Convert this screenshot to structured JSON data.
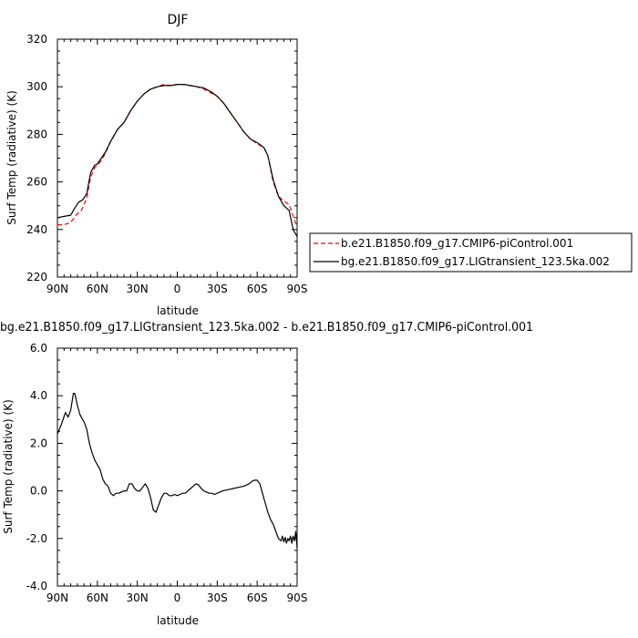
{
  "chart_data": [
    {
      "type": "line",
      "title": "DJF",
      "xlabel": "latitude",
      "ylabel": "Surf Temp (radiative) (K)",
      "xlim": [
        90,
        -90
      ],
      "ylim": [
        220,
        320
      ],
      "x_ticks": [
        90,
        60,
        30,
        0,
        -30,
        -60,
        -90
      ],
      "x_tick_labels": [
        "90N",
        "60N",
        "30N",
        "0",
        "30S",
        "60S",
        "90S"
      ],
      "y_ticks": [
        220,
        240,
        260,
        280,
        300,
        320
      ],
      "y_tick_labels": [
        "220",
        "240",
        "260",
        "280",
        "300",
        "320"
      ],
      "legend_position": "right",
      "series": [
        {
          "name": "b.e21.B1850.f09_g17.CMIP6-piControl.001",
          "color": "#ff0000",
          "dash": "dashed",
          "x": [
            90,
            85,
            80,
            76,
            72,
            68,
            65,
            62,
            60,
            57,
            54,
            50,
            45,
            40,
            35,
            30,
            25,
            20,
            15,
            10,
            5,
            0,
            -5,
            -10,
            -15,
            -20,
            -25,
            -30,
            -35,
            -40,
            -45,
            -50,
            -55,
            -60,
            -65,
            -68,
            -72,
            -76,
            -80,
            -84,
            -88,
            -90
          ],
          "y": [
            242,
            242,
            243,
            246,
            248,
            253,
            262,
            266,
            267,
            269,
            272,
            277,
            282,
            285,
            290,
            294,
            297,
            299,
            300,
            301,
            300.5,
            301,
            301,
            300.5,
            300,
            299,
            297.5,
            296,
            293,
            289,
            285,
            281,
            278,
            276,
            274.5,
            271,
            260,
            254,
            252,
            250.5,
            244,
            241
          ]
        },
        {
          "name": "bg.e21.B1850.f09_g17.LIGtransient_123.5ka.002",
          "color": "#000000",
          "dash": "solid",
          "x": [
            90,
            85,
            80,
            77,
            74,
            71,
            68,
            65,
            62,
            60,
            57,
            54,
            50,
            45,
            40,
            35,
            30,
            25,
            20,
            15,
            10,
            5,
            0,
            -5,
            -10,
            -15,
            -20,
            -25,
            -30,
            -35,
            -40,
            -45,
            -50,
            -55,
            -60,
            -65,
            -68,
            -72,
            -76,
            -80,
            -84,
            -87,
            -90
          ],
          "y": [
            245,
            245.5,
            246,
            249,
            251.5,
            252.5,
            255,
            264,
            267,
            267.5,
            270,
            272.5,
            277,
            282,
            285,
            290,
            294,
            297,
            299,
            300,
            300.5,
            300.5,
            301,
            301,
            300.5,
            300,
            299.5,
            298,
            296,
            293,
            289,
            285,
            281,
            278,
            276.5,
            274.5,
            271,
            261,
            254,
            250,
            248,
            240,
            237
          ]
        }
      ]
    },
    {
      "type": "line",
      "title": "bg.e21.B1850.f09_g17.LIGtransient_123.5ka.002 - b.e21.B1850.f09_g17.CMIP6-piControl.001",
      "xlabel": "latitude",
      "ylabel": "Surf Temp (radiative) (K)",
      "xlim": [
        90,
        -90
      ],
      "ylim": [
        -4,
        6
      ],
      "x_ticks": [
        90,
        60,
        30,
        0,
        -30,
        -60,
        -90
      ],
      "x_tick_labels": [
        "90N",
        "60N",
        "30N",
        "0",
        "30S",
        "60S",
        "90S"
      ],
      "y_ticks": [
        -4,
        -2,
        0,
        2,
        4,
        6
      ],
      "y_tick_labels": [
        "-4.0",
        "-2.0",
        "0.0",
        "2.0",
        "4.0",
        "6.0"
      ],
      "series": [
        {
          "color": "#000000",
          "dash": "solid",
          "x": [
            90,
            87,
            84,
            82,
            80,
            78,
            77,
            75,
            73,
            70,
            68,
            66,
            64,
            62,
            60,
            58,
            56,
            54,
            52,
            50,
            48,
            46,
            44,
            42,
            40,
            38,
            36,
            34,
            32,
            30,
            28,
            26,
            24,
            22,
            20,
            18,
            16,
            14,
            12,
            10,
            8,
            6,
            4,
            2,
            0,
            -2,
            -4,
            -6,
            -8,
            -10,
            -12,
            -14,
            -16,
            -18,
            -20,
            -22,
            -24,
            -26,
            -28,
            -30,
            -34,
            -38,
            -42,
            -46,
            -50,
            -54,
            -56,
            -58,
            -60,
            -62,
            -64,
            -66,
            -68,
            -70,
            -72,
            -74,
            -76,
            -78,
            -79,
            -80,
            -81,
            -82,
            -83,
            -84,
            -85,
            -86,
            -87,
            -88,
            -89,
            -90
          ],
          "y": [
            2.4,
            2.8,
            3.3,
            3.1,
            3.4,
            4.1,
            4.1,
            3.6,
            3.2,
            2.9,
            2.6,
            2.0,
            1.6,
            1.3,
            1.1,
            0.9,
            0.5,
            0.3,
            0.2,
            -0.1,
            -0.2,
            -0.1,
            -0.1,
            -0.05,
            0.0,
            0.0,
            0.3,
            0.3,
            0.1,
            0.0,
            0.0,
            0.15,
            0.3,
            0.1,
            -0.3,
            -0.8,
            -0.9,
            -0.6,
            -0.3,
            -0.1,
            -0.1,
            -0.2,
            -0.2,
            -0.15,
            -0.2,
            -0.15,
            -0.1,
            -0.1,
            0.0,
            0.1,
            0.2,
            0.3,
            0.25,
            0.1,
            0.0,
            -0.05,
            -0.1,
            -0.1,
            -0.15,
            -0.1,
            0.0,
            0.05,
            0.1,
            0.15,
            0.2,
            0.3,
            0.4,
            0.45,
            0.45,
            0.3,
            -0.1,
            -0.5,
            -0.9,
            -1.2,
            -1.4,
            -1.7,
            -2.0,
            -2.1,
            -1.9,
            -2.15,
            -1.95,
            -2.2,
            -2.0,
            -2.1,
            -1.9,
            -2.2,
            -1.9,
            -2.1,
            -1.7,
            -2.4
          ]
        }
      ]
    }
  ]
}
